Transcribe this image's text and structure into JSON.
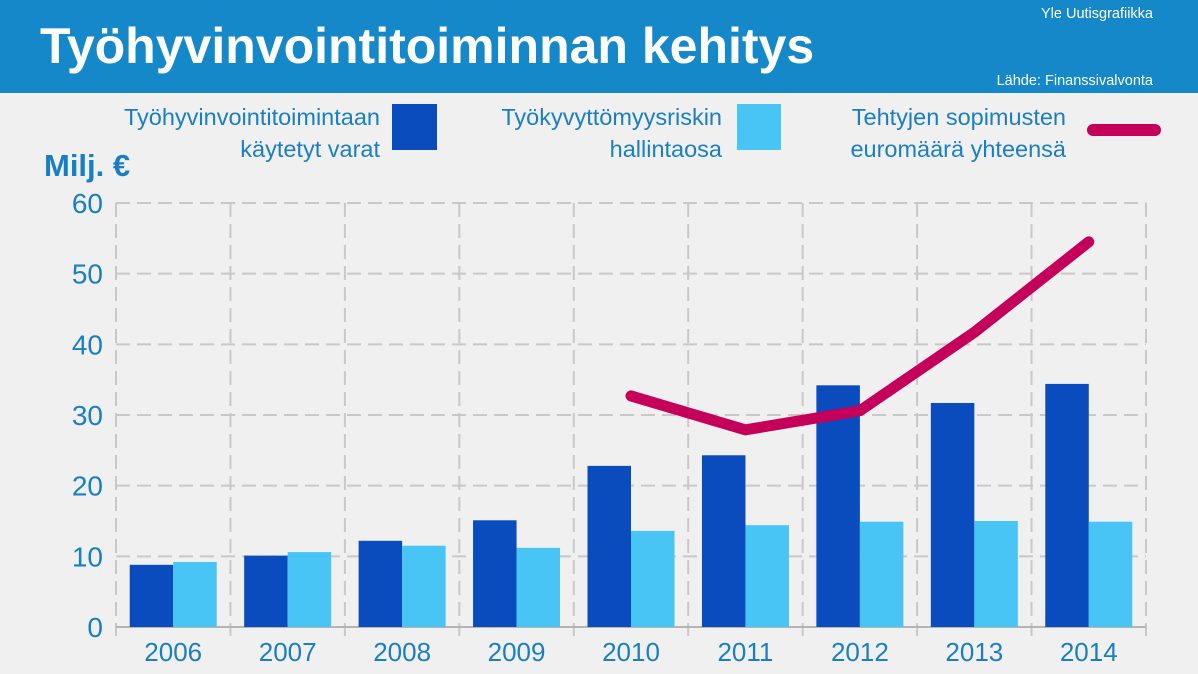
{
  "header": {
    "credit": "Yle Uutisgrafiikka",
    "source": "Lähde: Finanssivalvonta"
  },
  "colors": {
    "header_background": "#1488c8",
    "page_background": "#f0f0f0",
    "text": "#1a7fc2",
    "grid": "#c8c8c8",
    "axis": "#b4b4b4"
  },
  "chart_data": {
    "type": "bar",
    "title": "Työhyvinvointitoiminnan kehitys",
    "ylabel": "Milj. €",
    "categories": [
      "2006",
      "2007",
      "2008",
      "2009",
      "2010",
      "2011",
      "2012",
      "2013",
      "2014"
    ],
    "yticks": [
      0,
      10,
      20,
      30,
      40,
      50,
      60
    ],
    "ylim": [
      0,
      60
    ],
    "grid": true,
    "legend": "top",
    "series": [
      {
        "name": "Työhyvinvointitoimintaan käytetyt varat",
        "type": "bar",
        "color": "#0a4cbe",
        "values": [
          8.8,
          10.1,
          12.2,
          15.1,
          22.8,
          24.3,
          34.2,
          31.7,
          34.4
        ]
      },
      {
        "name": "Työkyvyttömyysriskin hallintaosa",
        "type": "bar",
        "color": "#48c4f5",
        "values": [
          9.2,
          10.6,
          11.5,
          11.2,
          13.6,
          14.4,
          14.9,
          15.0,
          14.9
        ]
      },
      {
        "name": "Tehtyjen sopimusten euromäärä yhteensä",
        "type": "line",
        "color": "#c5005a",
        "values": [
          null,
          null,
          null,
          null,
          32.7,
          27.9,
          30.6,
          41.7,
          54.5
        ]
      }
    ]
  }
}
